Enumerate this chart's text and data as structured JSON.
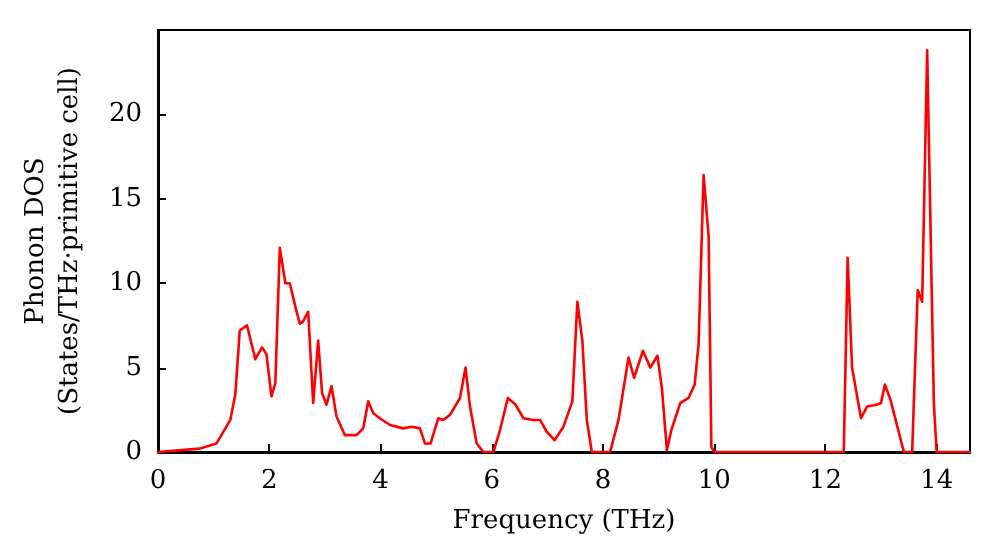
{
  "chart_data": {
    "type": "line",
    "xlabel": "Frequency (THz)",
    "ylabel": "Phonon DOS\n(States/THz·primitive cell)",
    "x": [
      0,
      0.75,
      1.05,
      1.3,
      1.39,
      1.47,
      1.6,
      1.75,
      1.87,
      1.95,
      2.04,
      2.11,
      2.19,
      2.29,
      2.37,
      2.47,
      2.55,
      2.6,
      2.7,
      2.79,
      2.88,
      2.95,
      3.03,
      3.12,
      3.21,
      3.36,
      3.57,
      3.69,
      3.78,
      3.87,
      3.99,
      4.17,
      4.41,
      4.56,
      4.71,
      4.8,
      4.9,
      5.04,
      5.13,
      5.25,
      5.43,
      5.53,
      5.61,
      5.73,
      5.85,
      6.03,
      6.15,
      6.29,
      6.43,
      6.57,
      6.75,
      6.87,
      6.99,
      7.13,
      7.29,
      7.45,
      7.54,
      7.63,
      7.71,
      7.8,
      8.13,
      8.28,
      8.46,
      8.56,
      8.72,
      8.85,
      8.98,
      9.06,
      9.15,
      9.23,
      9.39,
      9.54,
      9.65,
      9.72,
      9.81,
      9.9,
      9.95,
      10.0,
      12.33,
      12.4,
      12.48,
      12.64,
      12.75,
      12.92,
      13.0,
      13.07,
      13.17,
      13.41,
      13.56,
      13.66,
      13.74,
      13.83,
      13.95,
      14.0,
      14.6
    ],
    "series": [
      {
        "color": "#ff0000",
        "values": [
          0,
          0.2,
          0.5,
          1.9,
          3.4,
          7.2,
          7.5,
          5.5,
          6.2,
          5.8,
          3.3,
          4.1,
          12.1,
          10.0,
          10.0,
          8.6,
          7.6,
          7.7,
          8.3,
          2.9,
          6.6,
          3.5,
          2.8,
          3.9,
          2.1,
          1.0,
          1.0,
          1.4,
          3.0,
          2.3,
          2.0,
          1.6,
          1.4,
          1.5,
          1.4,
          0.5,
          0.5,
          2.0,
          1.9,
          2.2,
          3.2,
          5.0,
          2.7,
          0.5,
          0,
          0,
          1.3,
          3.2,
          2.8,
          2.0,
          1.9,
          1.9,
          1.2,
          0.7,
          1.5,
          3.0,
          8.9,
          6.6,
          1.9,
          0,
          0,
          1.9,
          5.6,
          4.4,
          6.0,
          5.0,
          5.7,
          3.8,
          0.1,
          1.3,
          2.9,
          3.2,
          4.0,
          6.4,
          16.4,
          12.8,
          0.3,
          0,
          0,
          11.5,
          5.0,
          2.0,
          2.7,
          2.8,
          2.9,
          4.0,
          3.1,
          0,
          0,
          9.6,
          8.9,
          23.8,
          2.9,
          0,
          0
        ]
      }
    ],
    "xlim": [
      0,
      14.6
    ],
    "xticks": [
      0,
      2,
      4,
      6,
      8,
      10,
      12,
      14
    ],
    "ylim": [
      0,
      25
    ],
    "yticks": [
      0,
      5,
      10,
      15,
      20
    ],
    "grid": false,
    "marker": "none",
    "line_style": "solid"
  }
}
